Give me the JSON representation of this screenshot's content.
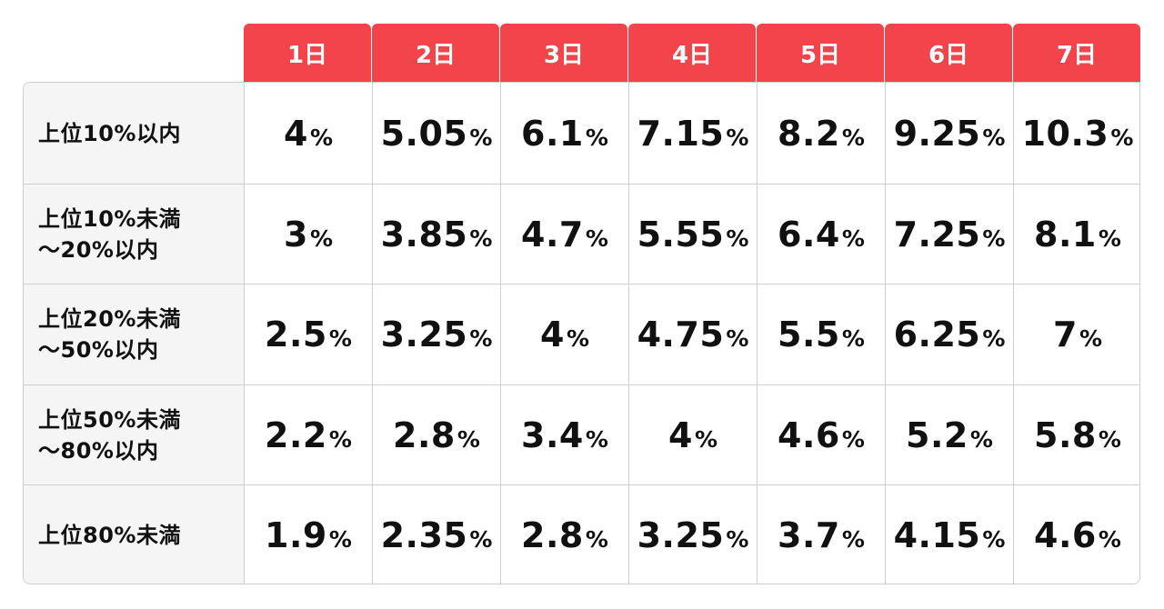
{
  "table": {
    "columns": [
      "1日",
      "2日",
      "3日",
      "4日",
      "5日",
      "6日",
      "7日"
    ],
    "rows": [
      {
        "label_lines": [
          "上位10%以内"
        ],
        "values": [
          "4",
          "5.05",
          "6.1",
          "7.15",
          "8.2",
          "9.25",
          "10.3"
        ]
      },
      {
        "label_lines": [
          "上位10%未満",
          "～20%以内"
        ],
        "values": [
          "3",
          "3.85",
          "4.7",
          "5.55",
          "6.4",
          "7.25",
          "8.1"
        ]
      },
      {
        "label_lines": [
          "上位20%未満",
          "～50%以内"
        ],
        "values": [
          "2.5",
          "3.25",
          "4",
          "4.75",
          "5.5",
          "6.25",
          "7"
        ]
      },
      {
        "label_lines": [
          "上位50%未満",
          "～80%以内"
        ],
        "values": [
          "2.2",
          "2.8",
          "3.4",
          "4",
          "4.6",
          "5.2",
          "5.8"
        ]
      },
      {
        "label_lines": [
          "上位80%未満"
        ],
        "values": [
          "1.9",
          "2.35",
          "2.8",
          "3.25",
          "3.7",
          "4.15",
          "4.6"
        ]
      }
    ],
    "unit": "%"
  },
  "colors": {
    "header_bg": "#f2444a",
    "header_text": "#ffffff",
    "label_bg": "#f5f5f5",
    "grid_line": "#cfcfcf",
    "text": "#111111"
  }
}
